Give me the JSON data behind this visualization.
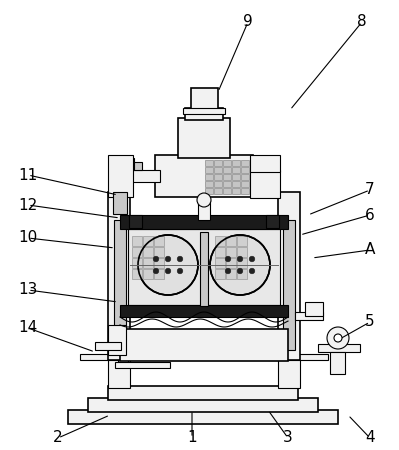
{
  "background_color": "#ffffff",
  "line_color": "#000000",
  "dark_fill": "#1a1a1a",
  "mid_gray": "#888888",
  "light_gray": "#d8d8d8",
  "figsize": [
    3.99,
    4.5
  ],
  "dpi": 100,
  "annotations": [
    [
      "1",
      192,
      438,
      192,
      410
    ],
    [
      "2",
      58,
      438,
      110,
      415
    ],
    [
      "3",
      288,
      438,
      268,
      410
    ],
    [
      "4",
      370,
      438,
      348,
      415
    ],
    [
      "5",
      370,
      322,
      338,
      340
    ],
    [
      "6",
      370,
      215,
      300,
      235
    ],
    [
      "7",
      370,
      190,
      308,
      215
    ],
    [
      "8",
      362,
      22,
      290,
      110
    ],
    [
      "9",
      248,
      22,
      218,
      92
    ],
    [
      "10",
      28,
      238,
      115,
      248
    ],
    [
      "11",
      28,
      175,
      118,
      195
    ],
    [
      "12",
      28,
      205,
      120,
      218
    ],
    [
      "13",
      28,
      290,
      118,
      302
    ],
    [
      "14",
      28,
      328,
      95,
      352
    ],
    [
      "A",
      370,
      250,
      312,
      258
    ]
  ]
}
